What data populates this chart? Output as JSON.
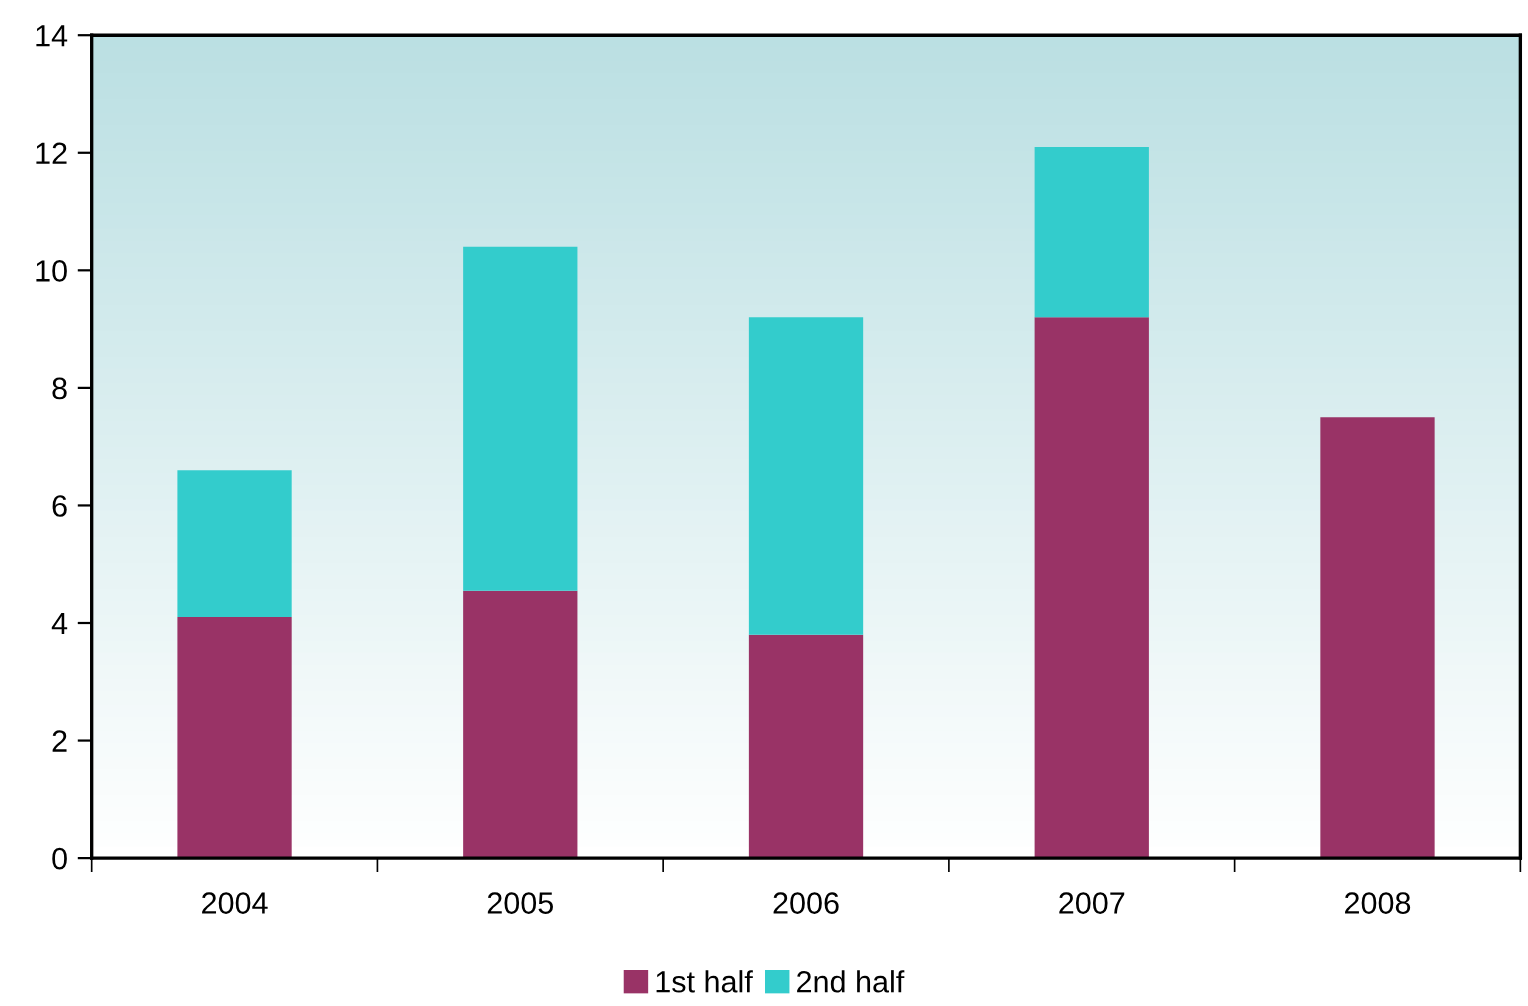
{
  "chart_data": {
    "type": "bar",
    "stacked": true,
    "categories": [
      "2004",
      "2005",
      "2006",
      "2007",
      "2008"
    ],
    "series": [
      {
        "name": "1st half",
        "color": "#993366",
        "values": [
          4.1,
          4.55,
          3.8,
          9.2,
          7.5
        ]
      },
      {
        "name": "2nd half",
        "color": "#33cccc",
        "values": [
          2.5,
          5.85,
          5.4,
          2.9,
          null
        ]
      }
    ],
    "ylim": [
      0,
      14
    ],
    "yticks": [
      0,
      2,
      4,
      6,
      8,
      10,
      12,
      14
    ],
    "grid": false,
    "legend": "bottom"
  }
}
